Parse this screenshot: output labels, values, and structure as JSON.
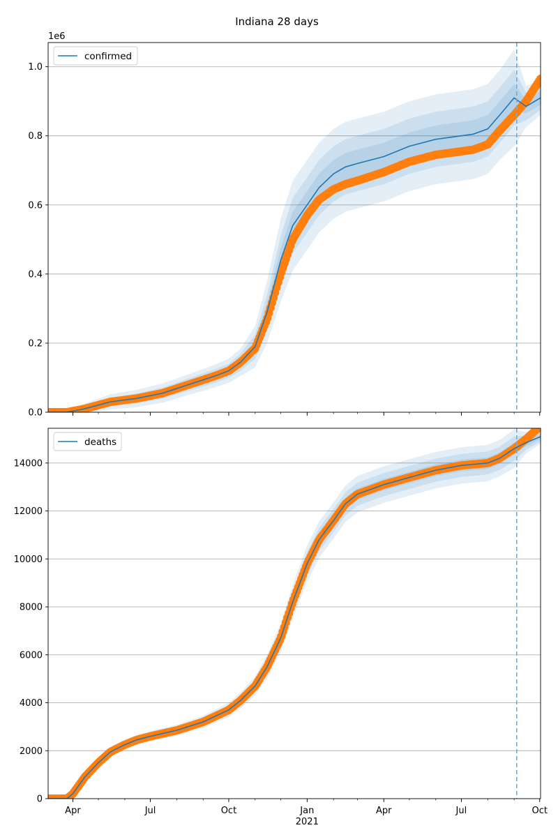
{
  "chart_data": {
    "title": "Indiana 28 days",
    "type": "line",
    "x_tick_labels": [
      "Apr",
      "Jul",
      "Oct",
      "Jan",
      "Apr",
      "Jul",
      "Oct"
    ],
    "x_tick_dates": [
      "2020-04-01",
      "2020-07-01",
      "2020-10-01",
      "2021-01-01",
      "2021-04-01",
      "2021-07-01",
      "2021-10-01"
    ],
    "x_year_label": "2021",
    "x_range": [
      "2020-03-03",
      "2021-10-02"
    ],
    "forecast_start": "2021-09-04",
    "panels": [
      {
        "name": "confirmed",
        "legend": "confirmed",
        "legend_position": "top-left",
        "grid_y": true,
        "offset_label": "1e6",
        "ylim": [
          0,
          1.07
        ],
        "yticks": [
          0.0,
          0.2,
          0.4,
          0.6,
          0.8,
          1.0
        ],
        "ytick_labels": [
          "0.0",
          "0.2",
          "0.4",
          "0.6",
          "0.8",
          "1.0"
        ],
        "observed": {
          "x": [
            "2020-03-03",
            "2020-03-25",
            "2020-04-15",
            "2020-05-15",
            "2020-06-15",
            "2020-07-15",
            "2020-08-15",
            "2020-09-15",
            "2020-10-01",
            "2020-10-15",
            "2020-11-01",
            "2020-11-15",
            "2020-12-01",
            "2020-12-15",
            "2021-01-01",
            "2021-01-15",
            "2021-02-01",
            "2021-02-15",
            "2021-03-01",
            "2021-04-01",
            "2021-05-01",
            "2021-06-01",
            "2021-07-01",
            "2021-07-15",
            "2021-08-01",
            "2021-08-15",
            "2021-09-01",
            "2021-09-15",
            "2021-10-02"
          ],
          "y": [
            0.0,
            0.0,
            0.01,
            0.03,
            0.04,
            0.055,
            0.08,
            0.105,
            0.12,
            0.145,
            0.185,
            0.27,
            0.4,
            0.5,
            0.57,
            0.615,
            0.645,
            0.66,
            0.67,
            0.695,
            0.725,
            0.745,
            0.755,
            0.76,
            0.775,
            0.815,
            0.86,
            0.9,
            0.965
          ]
        },
        "model": {
          "x": [
            "2020-03-03",
            "2020-03-25",
            "2020-04-15",
            "2020-05-15",
            "2020-06-15",
            "2020-07-15",
            "2020-08-15",
            "2020-09-15",
            "2020-10-01",
            "2020-10-15",
            "2020-11-01",
            "2020-11-15",
            "2020-12-01",
            "2020-12-15",
            "2021-01-01",
            "2021-01-15",
            "2021-02-01",
            "2021-02-15",
            "2021-03-01",
            "2021-04-01",
            "2021-05-01",
            "2021-06-01",
            "2021-07-01",
            "2021-07-15",
            "2021-08-01",
            "2021-08-15",
            "2021-09-01",
            "2021-09-15",
            "2021-10-02"
          ],
          "y": [
            0.0,
            0.0,
            0.01,
            0.03,
            0.04,
            0.055,
            0.08,
            0.105,
            0.12,
            0.145,
            0.19,
            0.29,
            0.44,
            0.54,
            0.6,
            0.65,
            0.69,
            0.71,
            0.72,
            0.74,
            0.77,
            0.79,
            0.8,
            0.805,
            0.82,
            0.86,
            0.91,
            0.885,
            0.91
          ]
        },
        "band_widths": [
          [
            0.0,
            0.0,
            0.004,
            0.006,
            0.007,
            0.008,
            0.009,
            0.01,
            0.01,
            0.012,
            0.018,
            0.025,
            0.035,
            0.04,
            0.04,
            0.04,
            0.04,
            0.04,
            0.04,
            0.04,
            0.04,
            0.04,
            0.04,
            0.04,
            0.04,
            0.04,
            0.04,
            0.02,
            0.02
          ],
          [
            0.0,
            0.0,
            0.008,
            0.012,
            0.014,
            0.016,
            0.018,
            0.02,
            0.02,
            0.025,
            0.035,
            0.05,
            0.07,
            0.08,
            0.08,
            0.08,
            0.08,
            0.08,
            0.08,
            0.08,
            0.08,
            0.08,
            0.08,
            0.08,
            0.08,
            0.08,
            0.08,
            0.04,
            0.035
          ],
          [
            0.0,
            0.0,
            0.015,
            0.022,
            0.025,
            0.028,
            0.03,
            0.033,
            0.035,
            0.04,
            0.06,
            0.09,
            0.12,
            0.13,
            0.13,
            0.13,
            0.13,
            0.13,
            0.13,
            0.13,
            0.13,
            0.13,
            0.13,
            0.13,
            0.13,
            0.13,
            0.14,
            0.06,
            0.05
          ]
        ]
      },
      {
        "name": "deaths",
        "legend": "deaths",
        "legend_position": "top-left",
        "grid_y": true,
        "offset_label": "",
        "ylim": [
          0,
          15450
        ],
        "yticks": [
          0,
          2000,
          4000,
          6000,
          8000,
          10000,
          12000,
          14000
        ],
        "ytick_labels": [
          "0",
          "2000",
          "4000",
          "6000",
          "8000",
          "10000",
          "12000",
          "14000"
        ],
        "observed": {
          "x": [
            "2020-03-03",
            "2020-03-25",
            "2020-04-01",
            "2020-04-15",
            "2020-05-01",
            "2020-05-15",
            "2020-06-01",
            "2020-06-15",
            "2020-07-01",
            "2020-08-01",
            "2020-09-01",
            "2020-10-01",
            "2020-10-15",
            "2020-11-01",
            "2020-11-15",
            "2020-12-01",
            "2020-12-15",
            "2021-01-01",
            "2021-01-15",
            "2021-02-01",
            "2021-02-15",
            "2021-03-01",
            "2021-04-01",
            "2021-05-01",
            "2021-06-01",
            "2021-07-01",
            "2021-08-01",
            "2021-08-15",
            "2021-09-01",
            "2021-09-15",
            "2021-10-02"
          ],
          "y": [
            0,
            0,
            200,
            900,
            1500,
            1950,
            2250,
            2450,
            2600,
            2850,
            3200,
            3700,
            4100,
            4700,
            5500,
            6700,
            8200,
            9800,
            10800,
            11600,
            12300,
            12700,
            13100,
            13400,
            13700,
            13900,
            14000,
            14200,
            14600,
            15000,
            15550
          ]
        },
        "model": {
          "x": [
            "2020-03-03",
            "2020-03-25",
            "2020-04-01",
            "2020-04-15",
            "2020-05-01",
            "2020-05-15",
            "2020-06-01",
            "2020-06-15",
            "2020-07-01",
            "2020-08-01",
            "2020-09-01",
            "2020-10-01",
            "2020-10-15",
            "2020-11-01",
            "2020-11-15",
            "2020-12-01",
            "2020-12-15",
            "2021-01-01",
            "2021-01-15",
            "2021-02-01",
            "2021-02-15",
            "2021-03-01",
            "2021-04-01",
            "2021-05-01",
            "2021-06-01",
            "2021-07-01",
            "2021-08-01",
            "2021-08-15",
            "2021-09-01",
            "2021-09-15",
            "2021-10-02"
          ],
          "y": [
            0,
            0,
            200,
            900,
            1500,
            1950,
            2250,
            2450,
            2600,
            2850,
            3200,
            3700,
            4100,
            4700,
            5500,
            6700,
            8200,
            9800,
            10800,
            11600,
            12300,
            12700,
            13100,
            13400,
            13700,
            13900,
            14000,
            14200,
            14600,
            14850,
            15100
          ]
        },
        "band_widths": [
          [
            0,
            0,
            20,
            40,
            50,
            60,
            60,
            60,
            60,
            70,
            80,
            90,
            100,
            120,
            150,
            180,
            220,
            240,
            240,
            240,
            240,
            240,
            240,
            240,
            240,
            240,
            240,
            240,
            250,
            150,
            100
          ],
          [
            0,
            0,
            40,
            80,
            100,
            120,
            120,
            120,
            120,
            140,
            160,
            180,
            200,
            240,
            300,
            360,
            440,
            480,
            480,
            480,
            480,
            480,
            480,
            480,
            480,
            480,
            480,
            480,
            500,
            300,
            200
          ],
          [
            0,
            0,
            70,
            130,
            170,
            200,
            200,
            200,
            210,
            230,
            260,
            300,
            340,
            400,
            500,
            600,
            700,
            760,
            760,
            760,
            760,
            760,
            760,
            760,
            760,
            760,
            760,
            760,
            800,
            450,
            300
          ]
        ]
      }
    ],
    "colors": {
      "model_line": "#1f77b4",
      "band": "#1f77b4",
      "observed": "#ff7f0e",
      "forecast_line": "#7aaad0",
      "grid": "#b0b0b0"
    }
  }
}
